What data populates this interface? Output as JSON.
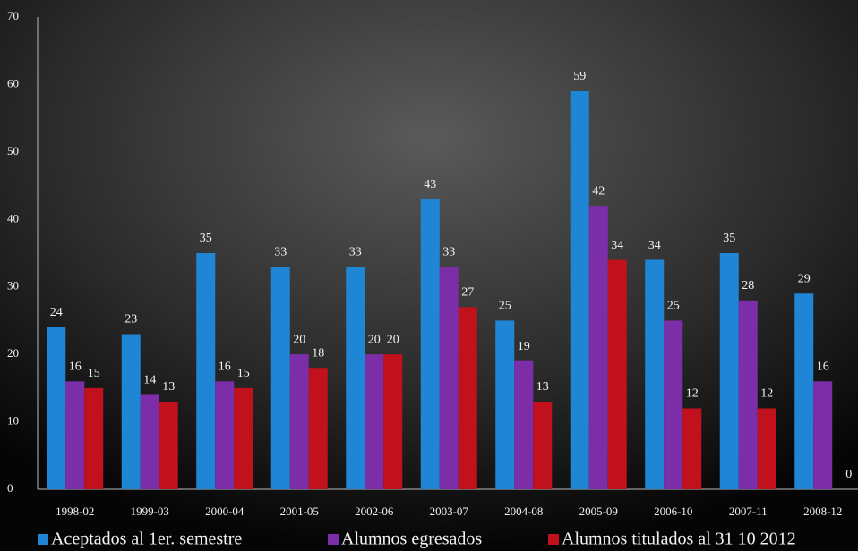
{
  "chart_data": {
    "type": "bar",
    "categories": [
      "1998-02",
      "1999-03",
      "2000-04",
      "2001-05",
      "2002-06",
      "2003-07",
      "2004-08",
      "2005-09",
      "2006-10",
      "2007-11",
      "2008-12"
    ],
    "series": [
      {
        "name": "Aceptados al 1er. semestre",
        "color": "#1f86d6",
        "values": [
          24,
          23,
          35,
          33,
          33,
          43,
          25,
          59,
          34,
          35,
          29
        ]
      },
      {
        "name": "Alumnos egresados",
        "color": "#7b2ea8",
        "values": [
          16,
          14,
          16,
          20,
          20,
          33,
          19,
          42,
          25,
          28,
          16
        ]
      },
      {
        "name": "Alumnos titulados al 31 10 2012",
        "color": "#c1111d",
        "values": [
          15,
          13,
          15,
          18,
          20,
          27,
          13,
          34,
          12,
          12,
          0
        ]
      }
    ],
    "ylim": [
      0,
      70
    ],
    "yticks": [
      0,
      10,
      20,
      30,
      40,
      50,
      60,
      70
    ],
    "grid": false,
    "legend": "bottom"
  }
}
